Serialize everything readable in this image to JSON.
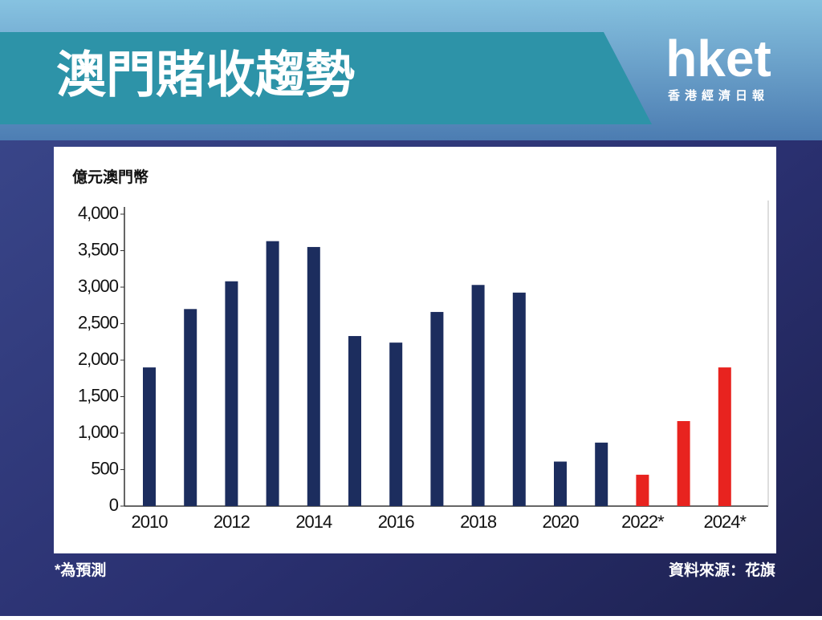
{
  "logo": {
    "name": "hket",
    "subtitle": "香港經濟日報"
  },
  "chart_data": {
    "type": "bar",
    "title": "澳門賭收趨勢",
    "y_label": "億元澳門幣",
    "note": "*為預測",
    "source": "資料來源：花旗",
    "categories": [
      "2010",
      null,
      "2012",
      null,
      "2014",
      null,
      "2016",
      null,
      "2018",
      null,
      "2020",
      null,
      "2022*",
      null,
      "2024*"
    ],
    "values": [
      1900,
      2700,
      3080,
      3630,
      3550,
      2330,
      2240,
      2660,
      3030,
      2925,
      610,
      870,
      430,
      1165,
      1900
    ],
    "colors": [
      "#1c2d5e",
      "#1c2d5e",
      "#1c2d5e",
      "#1c2d5e",
      "#1c2d5e",
      "#1c2d5e",
      "#1c2d5e",
      "#1c2d5e",
      "#1c2d5e",
      "#1c2d5e",
      "#1c2d5e",
      "#1c2d5e",
      "#e8231f",
      "#e8231f",
      "#e8231f"
    ],
    "ylim": [
      0,
      4000
    ],
    "yticks": [
      0,
      500,
      {
        "value": 1000,
        "label": "1,000"
      },
      {
        "value": 1500,
        "label": "1,500"
      },
      {
        "value": 2000,
        "label": "2,000"
      },
      {
        "value": 2500,
        "label": "2,500"
      },
      {
        "value": 3000,
        "label": "3,000"
      },
      {
        "value": 3500,
        "label": "3,500"
      },
      {
        "value": 4000,
        "label": "4,000"
      }
    ],
    "grid": false
  }
}
